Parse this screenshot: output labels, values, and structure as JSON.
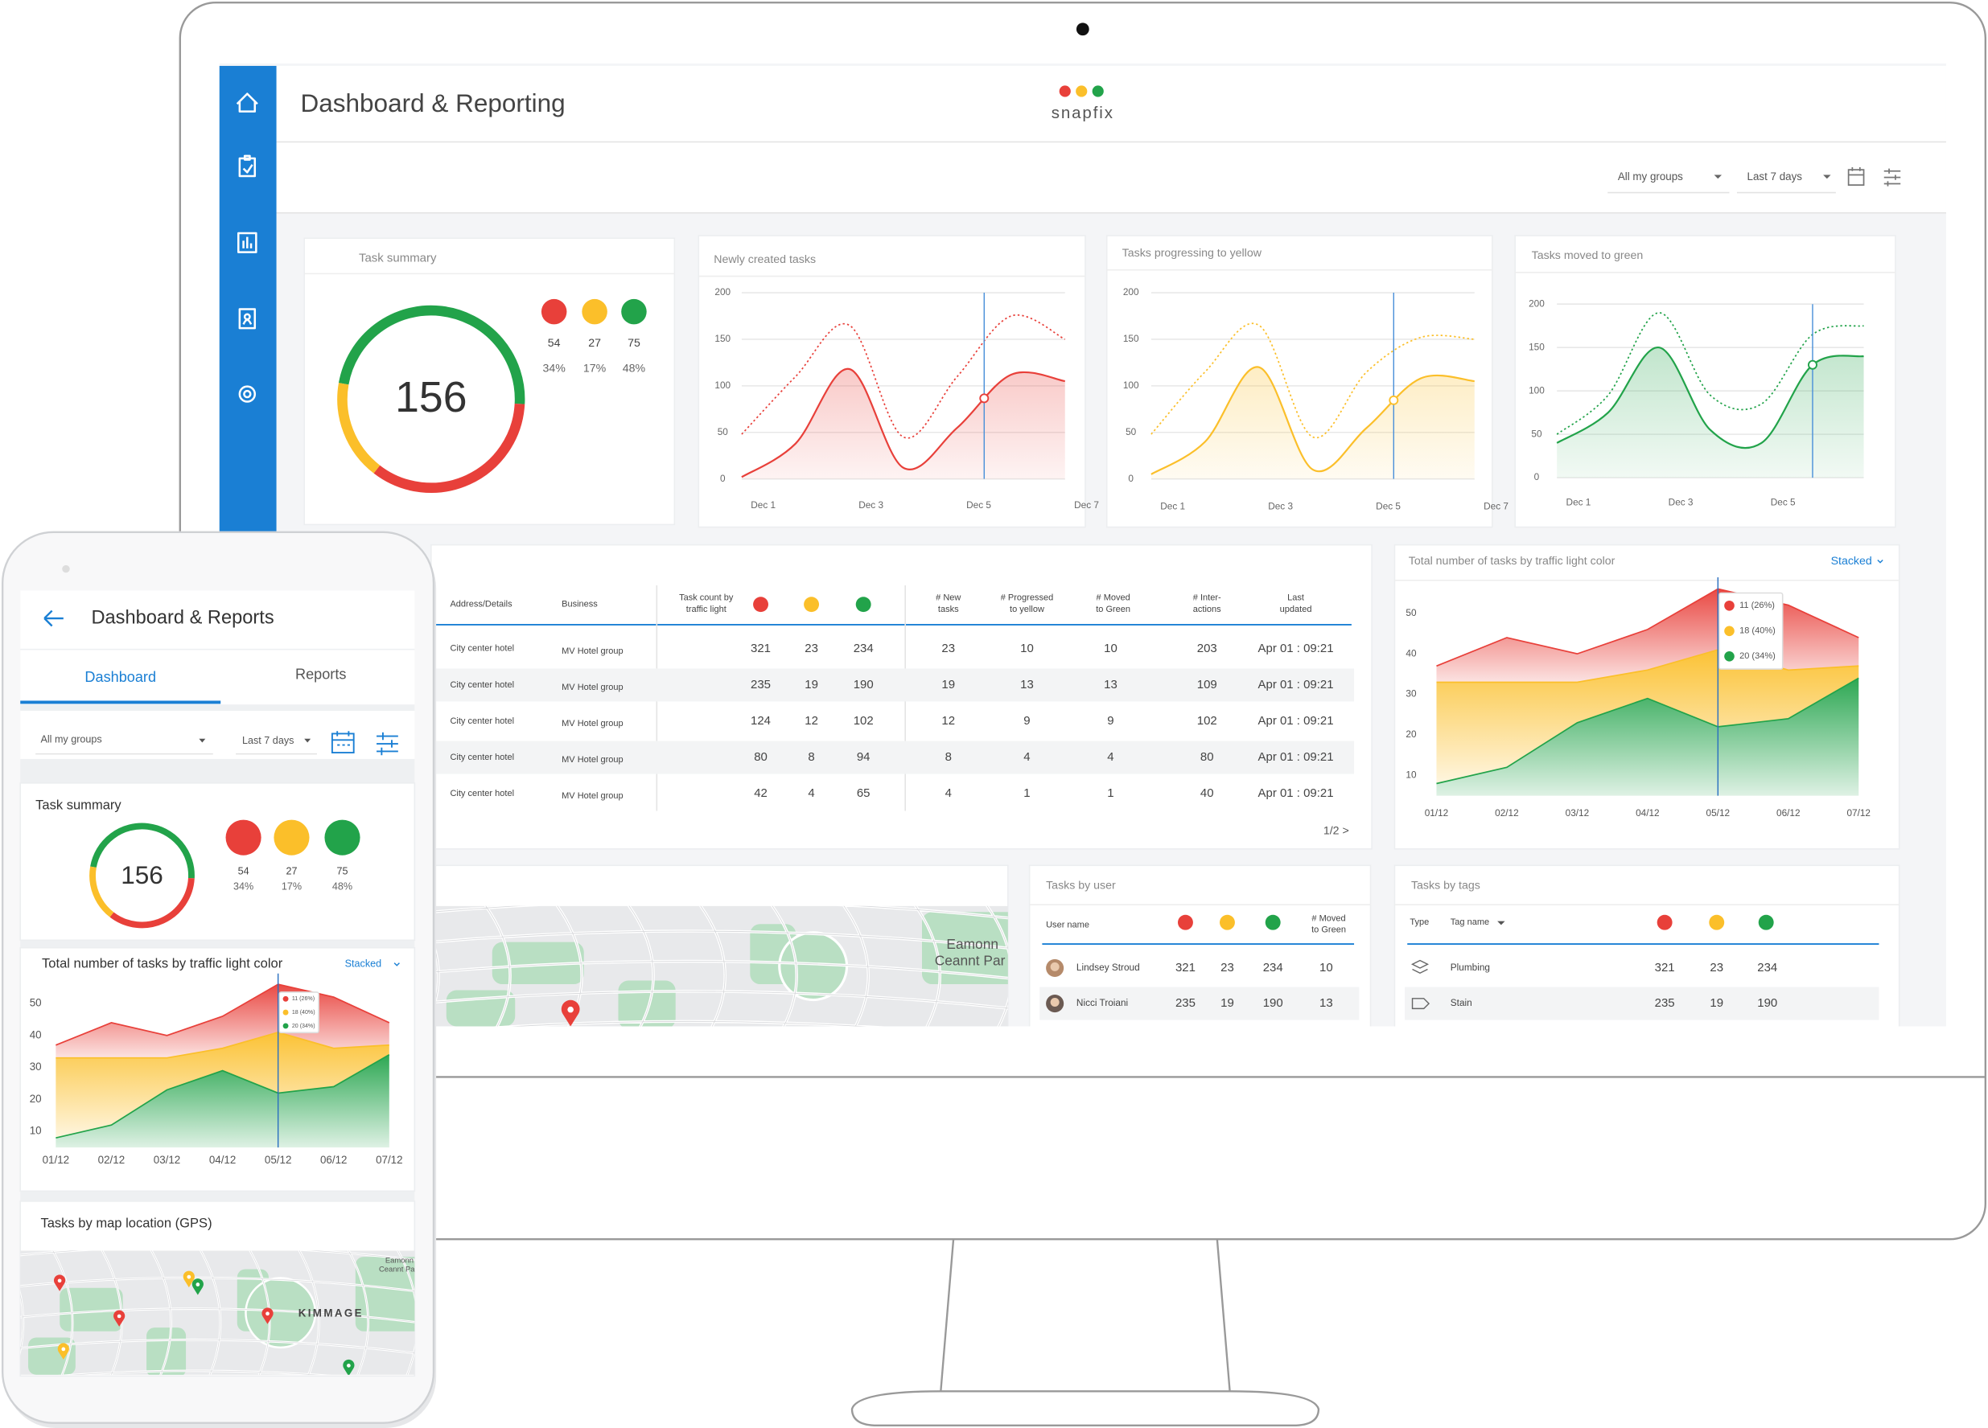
{
  "desktop": {
    "title": "Dashboard & Reporting",
    "logo": "snapfix",
    "filters": [
      "All my groups",
      "Last 7 days"
    ],
    "traffic_colors": [
      "#e8403a",
      "#fbbf2a",
      "#22a34a"
    ],
    "task_summary": {
      "title": "Task summary",
      "total": 156,
      "counts": [
        54,
        27,
        75
      ],
      "percents": [
        "34%",
        "17%",
        "48%"
      ]
    },
    "table": {
      "headers": [
        [
          "Address/Details"
        ],
        [
          "Business"
        ],
        [
          "Task count by",
          "traffic light"
        ],
        [
          "# New",
          "tasks"
        ],
        [
          "# Progressed",
          "to yellow"
        ],
        [
          "# Moved",
          "to Green"
        ],
        [
          "# Inter-",
          "actions"
        ],
        [
          "Last",
          "updated"
        ]
      ],
      "rows": [
        [
          "City center hotel",
          "MV Hotel group",
          321,
          23,
          234,
          23,
          10,
          10,
          203,
          "Apr 01 : 09:21"
        ],
        [
          "City center hotel",
          "MV Hotel group",
          235,
          19,
          190,
          19,
          13,
          13,
          109,
          "Apr 01 : 09:21"
        ],
        [
          "City center hotel",
          "MV Hotel group",
          124,
          12,
          102,
          12,
          9,
          9,
          102,
          "Apr 01 : 09:21"
        ],
        [
          "City center hotel",
          "MV Hotel group",
          80,
          8,
          94,
          8,
          4,
          4,
          80,
          "Apr 01 : 09:21"
        ],
        [
          "City center hotel",
          "MV Hotel group",
          42,
          4,
          65,
          4,
          1,
          1,
          40,
          "Apr 01 : 09:21"
        ]
      ],
      "pagination": "1/2 >"
    },
    "map": {
      "labels": [
        "Eamonn",
        "Ceannt Par"
      ]
    },
    "tasks_by_user": {
      "title": "Tasks by user",
      "headers": [
        "User name",
        "# Moved",
        "to Green"
      ],
      "rows": [
        [
          "Lindsey Stroud",
          321,
          23,
          234,
          10
        ],
        [
          "Nicci Troiani",
          235,
          19,
          190,
          13
        ]
      ]
    },
    "tasks_by_tags": {
      "title": "Tasks by tags",
      "headers": [
        "Type",
        "Tag name"
      ],
      "rows": [
        [
          "Plumbing",
          321,
          23,
          234
        ],
        [
          "Stain",
          235,
          19,
          190
        ]
      ]
    }
  },
  "mobile": {
    "title": "Dashboard & Reports",
    "tabs": [
      "Dashboard",
      "Reports"
    ],
    "filters": [
      "All my groups",
      "Last 7 days"
    ],
    "map": {
      "title": "Tasks by map location (GPS)",
      "labels": [
        "KIMMAGE",
        "Eamonn",
        "Ceannt Pa"
      ]
    }
  },
  "chart_data": [
    {
      "type": "line",
      "title": "Newly created tasks",
      "categories": [
        "Dec 1",
        null,
        "Dec 3",
        null,
        "Dec 5",
        null,
        "Dec 7"
      ],
      "series": [
        {
          "color": "#e8403a",
          "style": "solid",
          "values": [
            2,
            38,
            118,
            12,
            55,
            112,
            105
          ]
        },
        {
          "color": "#e8403a",
          "style": "dotted",
          "values": [
            48,
            110,
            165,
            45,
            110,
            175,
            150
          ]
        }
      ],
      "ylim": [
        0,
        200
      ],
      "yticks": [
        0,
        50,
        100,
        150,
        200
      ],
      "grid": true
    },
    {
      "type": "line",
      "title": "Tasks progressing to yellow",
      "categories": [
        "Dec 1",
        null,
        "Dec 3",
        null,
        "Dec 5",
        null,
        "Dec 7"
      ],
      "series": [
        {
          "color": "#fbbf2a",
          "style": "solid",
          "values": [
            5,
            40,
            120,
            10,
            55,
            108,
            105
          ]
        },
        {
          "color": "#fbbf2a",
          "style": "dotted",
          "values": [
            48,
            115,
            165,
            45,
            115,
            152,
            150
          ]
        }
      ],
      "ylim": [
        0,
        200
      ],
      "yticks": [
        0,
        50,
        100,
        150,
        200
      ],
      "grid": true
    },
    {
      "type": "line",
      "title": "Tasks moved to green",
      "categories": [
        "Dec 1",
        null,
        "Dec 3",
        null,
        "Dec 5",
        null,
        null
      ],
      "series": [
        {
          "color": "#22a34a",
          "style": "solid",
          "values": [
            40,
            75,
            150,
            55,
            40,
            130,
            140
          ]
        },
        {
          "color": "#22a34a",
          "style": "dotted",
          "values": [
            50,
            95,
            190,
            95,
            85,
            165,
            175
          ]
        }
      ],
      "ylim": [
        0,
        200
      ],
      "yticks": [
        0,
        50,
        100,
        150,
        200
      ],
      "grid": true
    },
    {
      "type": "area",
      "stacked": true,
      "title": "Total number of tasks by traffic light color",
      "mode": "Stacked",
      "categories": [
        "01/12",
        "02/12",
        "03/12",
        "04/12",
        "05/12",
        "06/12",
        "07/12"
      ],
      "series": [
        {
          "color": "#22a34a",
          "values": [
            8,
            12,
            23,
            29,
            22,
            24,
            34
          ]
        },
        {
          "color": "#fbbf2a",
          "values": [
            25,
            21,
            10,
            7,
            19,
            12,
            3
          ]
        },
        {
          "color": "#e8403a",
          "values": [
            4,
            11,
            7,
            10,
            15,
            16,
            7
          ]
        }
      ],
      "ylim": [
        5,
        57
      ],
      "yticks": [
        10,
        20,
        30,
        40,
        50
      ],
      "tooltip": [
        "11 (26%)",
        "18 (40%)",
        "20 (34%)"
      ]
    }
  ]
}
